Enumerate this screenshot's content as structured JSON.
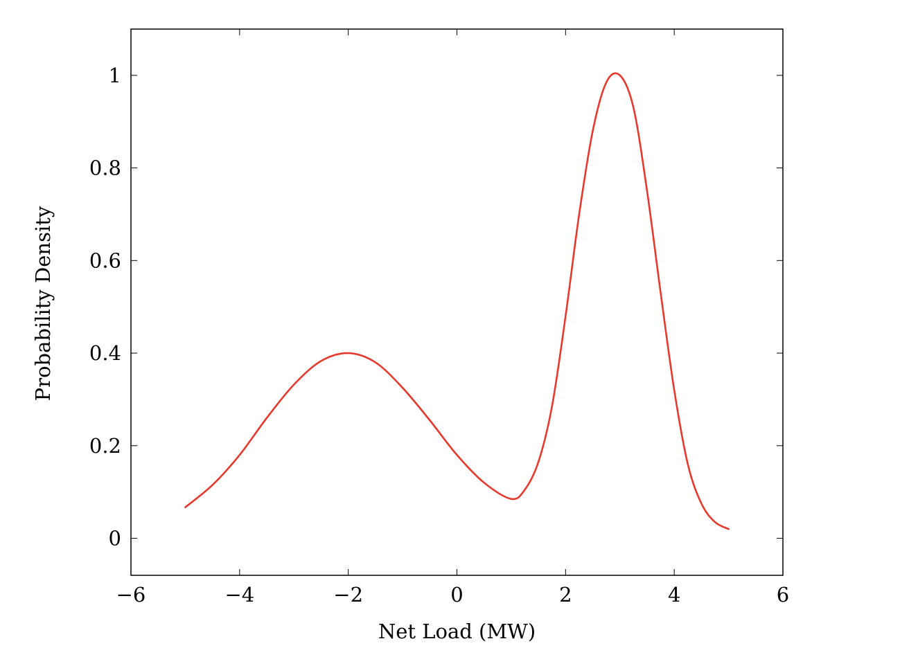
{
  "chart_data": {
    "type": "line",
    "title": "",
    "xlabel": "Net Load (MW)",
    "ylabel": "Probability Density",
    "xlim": [
      -6,
      6
    ],
    "ylim": [
      -0.08,
      1.1
    ],
    "x_ticks": [
      -6,
      -4,
      -2,
      0,
      2,
      4,
      6
    ],
    "x_tick_labels": [
      "−6",
      "−4",
      "−2",
      "0",
      "2",
      "4",
      "6"
    ],
    "y_ticks": [
      0,
      0.2,
      0.4,
      0.6,
      0.8,
      1
    ],
    "y_tick_labels": [
      "0",
      "0.2",
      "0.4",
      "0.6",
      "0.8",
      "1"
    ],
    "grid": false,
    "legend": "none",
    "series": [
      {
        "color": "#e8382b",
        "x": [
          -5.0,
          -4.5,
          -4.0,
          -3.5,
          -3.0,
          -2.5,
          -2.0,
          -1.5,
          -1.0,
          -0.5,
          0.0,
          0.5,
          1.0,
          1.25,
          1.5,
          1.75,
          2.0,
          2.25,
          2.5,
          2.75,
          3.0,
          3.25,
          3.5,
          3.75,
          4.0,
          4.25,
          4.5,
          4.75,
          5.0
        ],
        "y": [
          0.067,
          0.115,
          0.18,
          0.26,
          0.332,
          0.383,
          0.4,
          0.38,
          0.325,
          0.255,
          0.18,
          0.12,
          0.085,
          0.105,
          0.165,
          0.285,
          0.48,
          0.7,
          0.88,
          0.985,
          1.0,
          0.93,
          0.75,
          0.53,
          0.32,
          0.16,
          0.075,
          0.035,
          0.02
        ]
      }
    ]
  }
}
